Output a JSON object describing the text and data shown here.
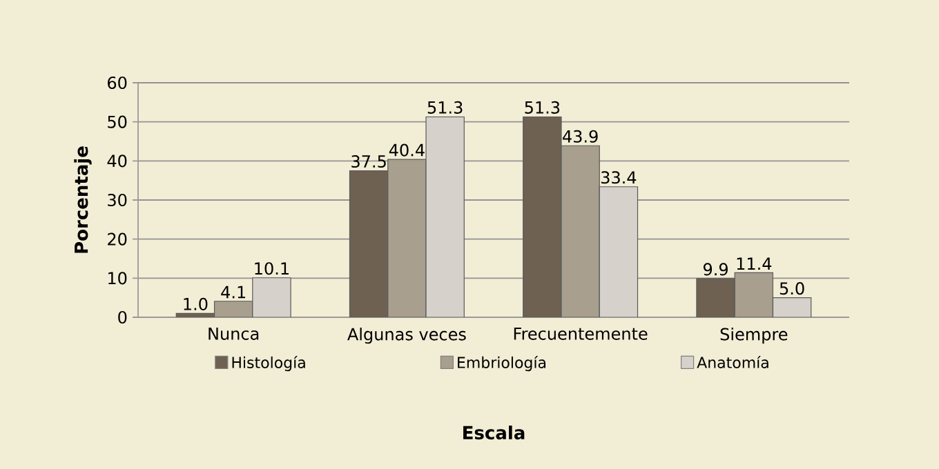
{
  "chart_data": {
    "type": "bar",
    "xlabel": "Escala",
    "ylabel": "Porcentaje",
    "categories": [
      "Nunca",
      "Algunas veces",
      "Frecuentemente",
      "Siempre"
    ],
    "series": [
      {
        "name": "Histología",
        "color": "#6e6152",
        "values": [
          1.0,
          37.5,
          51.3,
          9.9
        ],
        "value_labels": [
          "1.0",
          "37.5",
          "51.3",
          "9.9"
        ]
      },
      {
        "name": "Embriología",
        "color": "#a89f8e",
        "values": [
          4.1,
          40.4,
          43.9,
          11.4
        ],
        "value_labels": [
          "4.1",
          "40.4",
          "43.9",
          "11.4"
        ]
      },
      {
        "name": "Anatomía",
        "color": "#d6d2cb",
        "values": [
          10.1,
          51.3,
          33.4,
          5.0
        ],
        "value_labels": [
          "10.1",
          "51.3",
          "33.4",
          "5.0"
        ]
      }
    ],
    "ylim": [
      0,
      60
    ],
    "yticks": [
      0,
      10,
      20,
      30,
      40,
      50,
      60
    ],
    "grid": "y",
    "legend": "bottom"
  }
}
